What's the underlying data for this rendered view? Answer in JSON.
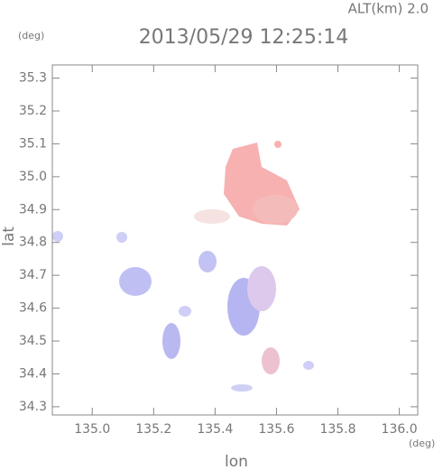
{
  "chart_data": {
    "type": "map",
    "title": "2013/05/29 12:25:14",
    "subtitle": "ALT(km) 2.0",
    "y_unit": "(deg)",
    "x_unit": "(deg)",
    "xlabel": "lon",
    "ylabel": "lat",
    "xlim": [
      134.87,
      136.06
    ],
    "ylim": [
      34.275,
      35.34
    ],
    "xticks": [
      {
        "value": 135,
        "label": "135.0"
      },
      135.2,
      135.4,
      135.6,
      135.8,
      {
        "value": 136,
        "label": "136.0"
      }
    ],
    "yticks": [
      34.3,
      34.4,
      34.5,
      34.6,
      34.7,
      34.8,
      34.9,
      {
        "value": 35,
        "label": "35.0"
      },
      35.1,
      35.2,
      35.3
    ]
  }
}
